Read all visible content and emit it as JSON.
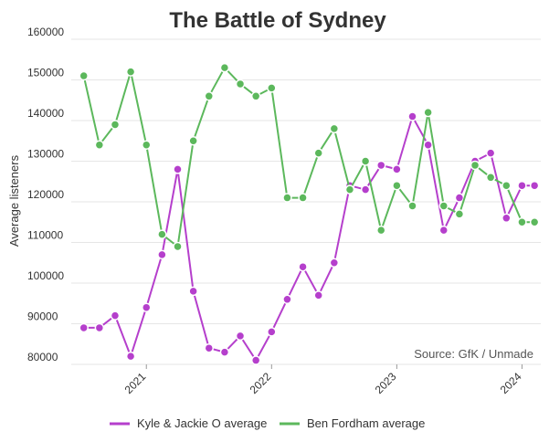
{
  "chart_data": {
    "type": "line",
    "title": "The Battle of Sydney",
    "xlabel": "",
    "ylabel": "Average listeners",
    "source": "Source: GfK / Unmade",
    "ylim": [
      80000,
      160000
    ],
    "yticks": [
      80000,
      90000,
      100000,
      110000,
      120000,
      130000,
      140000,
      150000,
      160000
    ],
    "xlim": [
      2020.4,
      2024.15
    ],
    "xticks": [
      2021,
      2022,
      2023,
      2024
    ],
    "xtick_labels": [
      "2021",
      "2022",
      "2023",
      "2024"
    ],
    "grid": "horizontal",
    "legend_position": "bottom",
    "x": [
      2020.5,
      2020.625,
      2020.75,
      2020.875,
      2021.0,
      2021.125,
      2021.25,
      2021.375,
      2021.5,
      2021.625,
      2021.75,
      2021.875,
      2022.0,
      2022.125,
      2022.25,
      2022.375,
      2022.5,
      2022.625,
      2022.75,
      2022.875,
      2023.0,
      2023.125,
      2023.25,
      2023.375,
      2023.5,
      2023.625,
      2023.75,
      2023.875,
      2024.0,
      2024.1
    ],
    "series": [
      {
        "name": "Kyle & Jackie O average",
        "color": "#b53fcc",
        "values": [
          89000,
          89000,
          92000,
          82000,
          94000,
          107000,
          128000,
          98000,
          84000,
          83000,
          87000,
          81000,
          88000,
          96000,
          104000,
          97000,
          105000,
          124000,
          123000,
          129000,
          128000,
          141000,
          134000,
          113000,
          121000,
          130000,
          132000,
          116000,
          124000,
          124000
        ]
      },
      {
        "name": "Ben Fordham average",
        "color": "#5cb85c",
        "values": [
          151000,
          134000,
          139000,
          152000,
          134000,
          112000,
          109000,
          135000,
          146000,
          153000,
          149000,
          146000,
          148000,
          121000,
          121000,
          132000,
          138000,
          123000,
          130000,
          113000,
          124000,
          119000,
          142000,
          119000,
          117000,
          129000,
          126000,
          124000,
          115000,
          115000
        ]
      }
    ]
  }
}
